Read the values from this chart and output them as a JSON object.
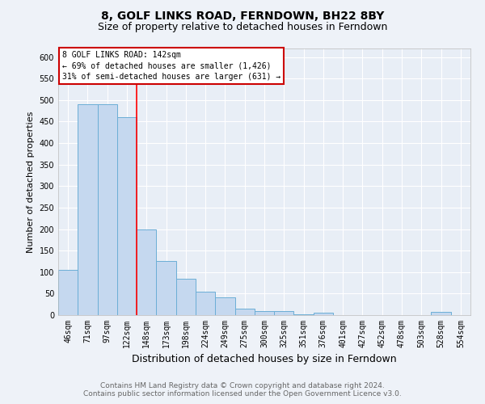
{
  "title": "8, GOLF LINKS ROAD, FERNDOWN, BH22 8BY",
  "subtitle": "Size of property relative to detached houses in Ferndown",
  "xlabel": "Distribution of detached houses by size in Ferndown",
  "ylabel": "Number of detached properties",
  "categories": [
    "46sqm",
    "71sqm",
    "97sqm",
    "122sqm",
    "148sqm",
    "173sqm",
    "198sqm",
    "224sqm",
    "249sqm",
    "275sqm",
    "300sqm",
    "325sqm",
    "351sqm",
    "376sqm",
    "401sqm",
    "427sqm",
    "452sqm",
    "478sqm",
    "503sqm",
    "528sqm",
    "554sqm"
  ],
  "values": [
    105,
    490,
    490,
    460,
    200,
    125,
    85,
    55,
    42,
    15,
    10,
    10,
    2,
    5,
    0,
    0,
    0,
    0,
    0,
    7,
    0
  ],
  "bar_color": "#c5d8ef",
  "bar_edge_color": "#6baed6",
  "red_line_x": 3.5,
  "annotation_text1": "8 GOLF LINKS ROAD: 142sqm",
  "annotation_text2": "← 69% of detached houses are smaller (1,426)",
  "annotation_text3": "31% of semi-detached houses are larger (631) →",
  "annotation_box_color": "#ffffff",
  "annotation_box_edge": "#cc0000",
  "ylim": [
    0,
    620
  ],
  "yticks": [
    0,
    50,
    100,
    150,
    200,
    250,
    300,
    350,
    400,
    450,
    500,
    550,
    600
  ],
  "footer1": "Contains HM Land Registry data © Crown copyright and database right 2024.",
  "footer2": "Contains public sector information licensed under the Open Government Licence v3.0.",
  "background_color": "#eef2f8",
  "plot_background": "#e8eef6",
  "grid_color": "#ffffff",
  "title_fontsize": 10,
  "subtitle_fontsize": 9,
  "xlabel_fontsize": 9,
  "ylabel_fontsize": 8,
  "tick_fontsize": 7,
  "footer_fontsize": 6.5,
  "ann_fontsize": 7
}
